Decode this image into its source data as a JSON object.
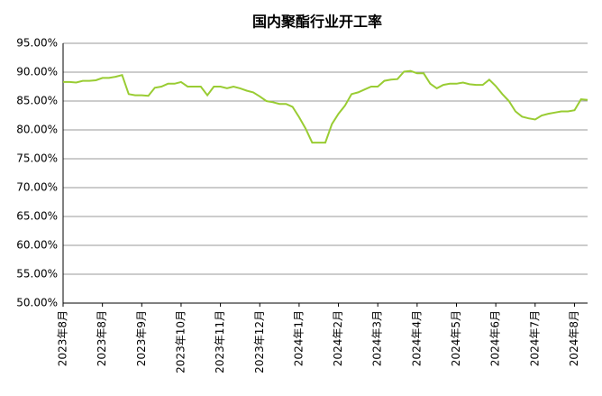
{
  "chart_data": {
    "type": "line",
    "title": "国内聚酯行业开工率",
    "categories": [
      "2023年8月",
      null,
      null,
      null,
      null,
      null,
      "2023年8月",
      null,
      null,
      null,
      null,
      null,
      "2023年9月",
      null,
      null,
      null,
      null,
      null,
      "2023年10月",
      null,
      null,
      null,
      null,
      null,
      "2023年11月",
      null,
      null,
      null,
      null,
      null,
      "2023年12月",
      null,
      null,
      null,
      null,
      null,
      "2024年1月",
      null,
      null,
      null,
      null,
      null,
      "2024年2月",
      null,
      null,
      null,
      null,
      null,
      "2024年3月",
      null,
      null,
      null,
      null,
      null,
      "2024年4月",
      null,
      null,
      null,
      null,
      null,
      "2024年5月",
      null,
      null,
      null,
      null,
      null,
      "2024年6月",
      null,
      null,
      null,
      null,
      null,
      "2024年7月",
      null,
      null,
      null,
      null,
      null,
      "2024年8月",
      null,
      null
    ],
    "series": [
      {
        "color": "#99cc33",
        "values": [
          88.3,
          88.3,
          88.2,
          88.5,
          88.5,
          88.6,
          89.0,
          89.0,
          89.2,
          89.5,
          86.2,
          86.0,
          86.0,
          85.9,
          87.3,
          87.5,
          88.0,
          88.0,
          88.3,
          87.5,
          87.5,
          87.5,
          86.0,
          87.5,
          87.5,
          87.2,
          87.5,
          87.2,
          86.8,
          86.5,
          85.8,
          85.0,
          84.8,
          84.5,
          84.5,
          84.0,
          82.2,
          80.2,
          77.8,
          77.8,
          77.8,
          81.0,
          82.8,
          84.2,
          86.2,
          86.5,
          87.0,
          87.5,
          87.5,
          88.5,
          88.7,
          88.8,
          90.1,
          90.2,
          89.8,
          89.8,
          88.0,
          87.2,
          87.8,
          88.0,
          88.0,
          88.2,
          87.9,
          87.8,
          87.8,
          88.7,
          87.6,
          86.2,
          85.0,
          83.2,
          82.3,
          82.0,
          81.8,
          82.5,
          82.8,
          83.0,
          83.2,
          83.2,
          83.4,
          85.3,
          85.2
        ]
      }
    ],
    "ylim": [
      50,
      95
    ],
    "yticks": [
      {
        "value": 50,
        "label": "50.00%"
      },
      {
        "value": 55,
        "label": "55.00%"
      },
      {
        "value": 60,
        "label": "60.00%"
      },
      {
        "value": 65,
        "label": "65.00%"
      },
      {
        "value": 70,
        "label": "70.00%"
      },
      {
        "value": 75,
        "label": "75.00%"
      },
      {
        "value": 80,
        "label": "80.00%"
      },
      {
        "value": 85,
        "label": "85.00%"
      },
      {
        "value": 90,
        "label": "90.00%"
      },
      {
        "value": 95,
        "label": "95.00%"
      }
    ],
    "grid": true
  }
}
